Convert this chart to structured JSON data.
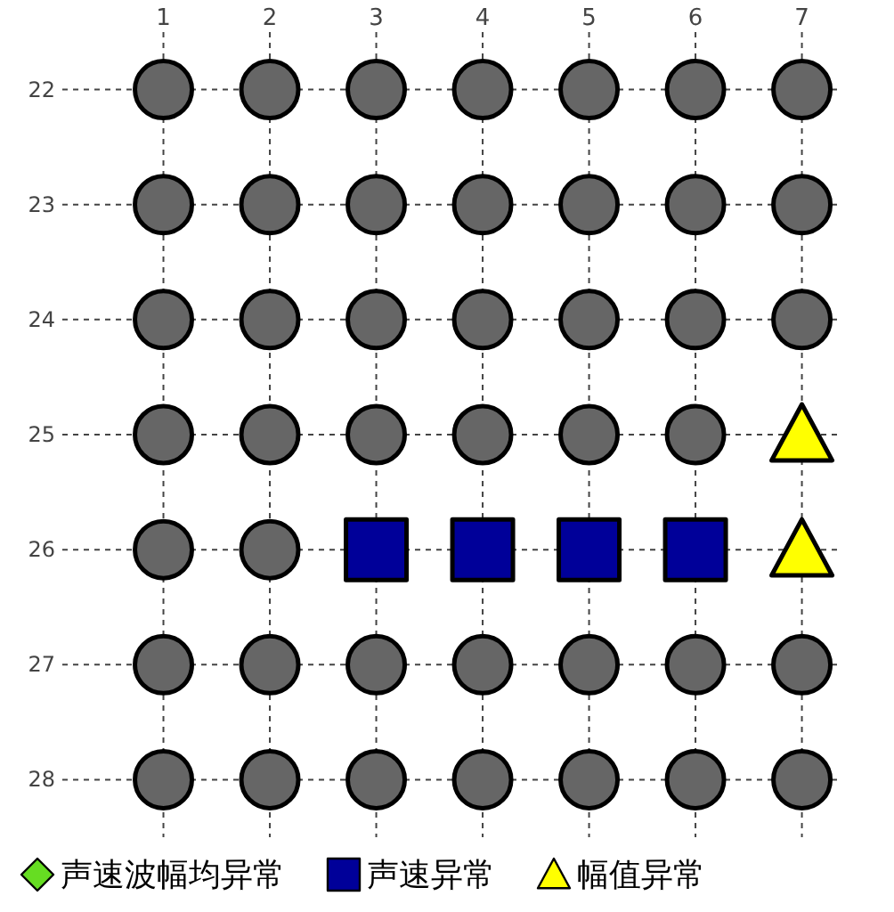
{
  "chart_data": {
    "type": "scatter",
    "xlim": [
      0.05,
      7.33
    ],
    "ylim": [
      28.5,
      21.5
    ],
    "xticks": [
      1,
      2,
      3,
      4,
      5,
      6,
      7
    ],
    "yticks": [
      22,
      23,
      24,
      25,
      26,
      27,
      28
    ],
    "grid": true,
    "legend": "bottom",
    "series": [
      {
        "name": "声速波幅均异常",
        "color": "#66dd22",
        "marker": "diamond"
      },
      {
        "name": "声速异常",
        "color": "#000099",
        "marker": "square",
        "x": [
          3,
          4,
          5,
          6
        ],
        "values": [
          26,
          26,
          26,
          26
        ]
      },
      {
        "name": "幅值异常",
        "color": "#ffff00",
        "marker": "triangle",
        "x": [
          7,
          7
        ],
        "values": [
          25,
          26
        ]
      },
      {
        "color": "#666666",
        "marker": "circle",
        "x": [
          1,
          2,
          3,
          4,
          5,
          6,
          7,
          1,
          2,
          3,
          4,
          5,
          6,
          7,
          1,
          2,
          3,
          4,
          5,
          6,
          7,
          1,
          2,
          3,
          4,
          5,
          6,
          1,
          2,
          1,
          2,
          3,
          4,
          5,
          6,
          7,
          1,
          2,
          3,
          4,
          5,
          6,
          7
        ],
        "values": [
          22,
          22,
          22,
          22,
          22,
          22,
          22,
          23,
          23,
          23,
          23,
          23,
          23,
          23,
          24,
          24,
          24,
          24,
          24,
          24,
          24,
          25,
          25,
          25,
          25,
          25,
          25,
          26,
          26,
          27,
          27,
          27,
          27,
          27,
          27,
          27,
          28,
          28,
          28,
          28,
          28,
          28,
          28
        ]
      }
    ]
  }
}
